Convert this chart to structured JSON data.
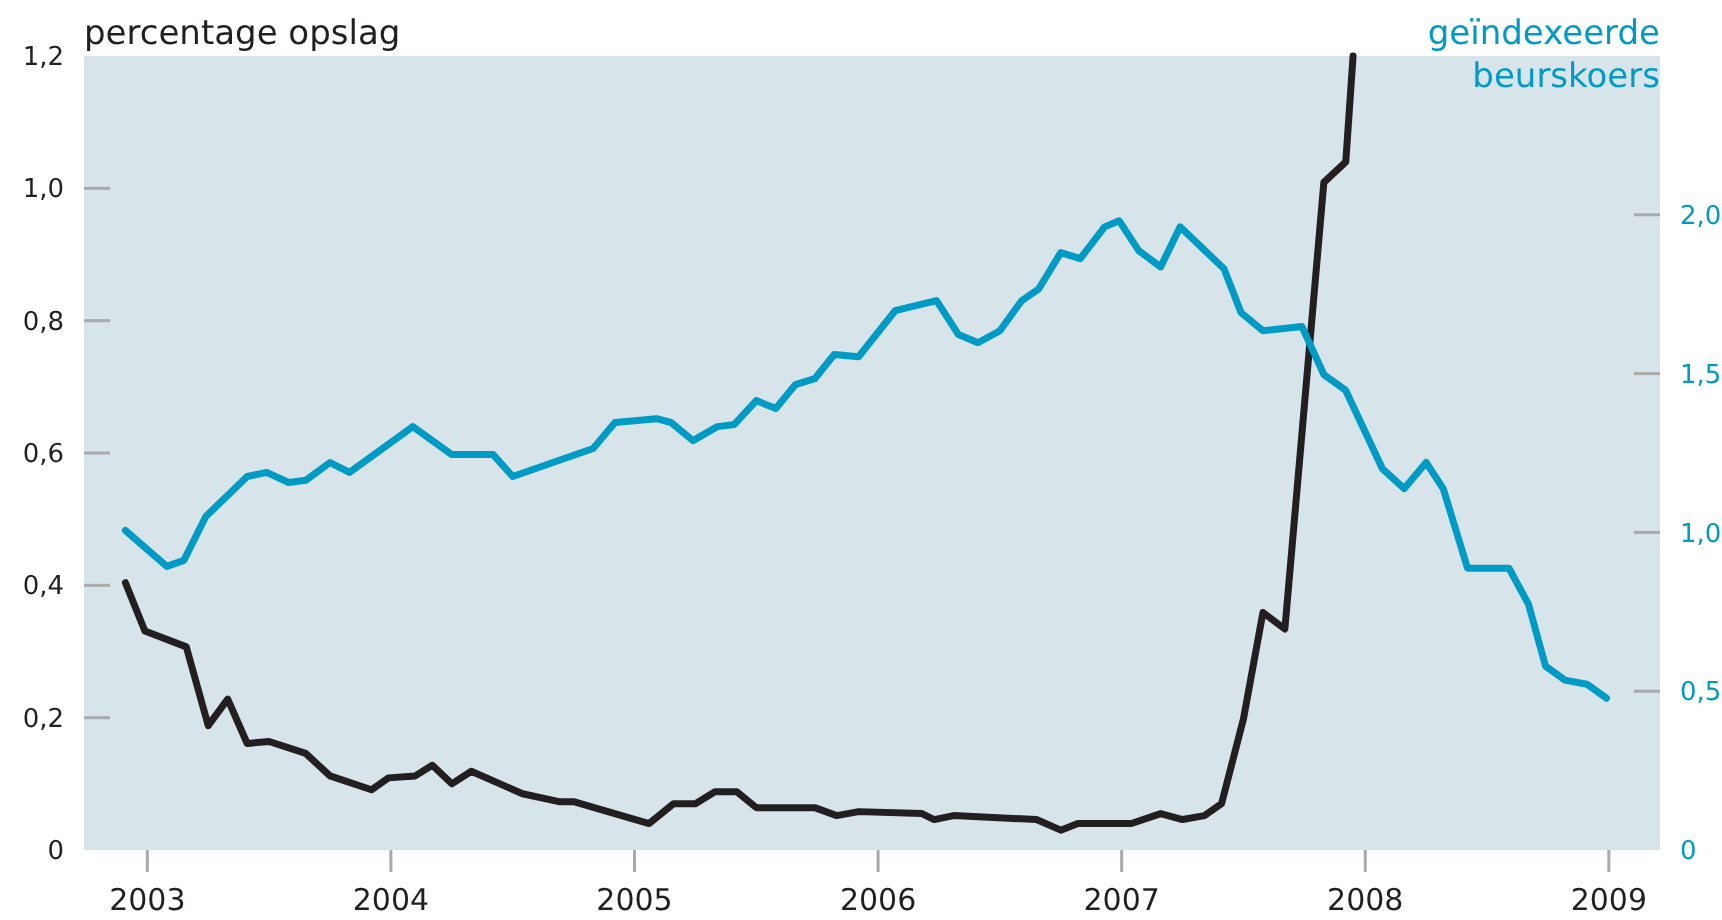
{
  "chart_data": {
    "type": "line",
    "ylabel": "percentage opslag",
    "y2label": "geïndexeerde beurskoers",
    "xlim": [
      2002.74,
      2009.21
    ],
    "xticks": [
      2003,
      2004,
      2005,
      2006,
      2007,
      2008,
      2009
    ],
    "ylim": [
      0,
      1.2
    ],
    "yticks": [
      {
        "value": 0,
        "label": "0"
      },
      {
        "value": 0.2,
        "label": "0,2"
      },
      {
        "value": 0.4,
        "label": "0,4"
      },
      {
        "value": 0.6,
        "label": "0,6"
      },
      {
        "value": 0.8,
        "label": "0,8"
      },
      {
        "value": 1.0,
        "label": "1,0"
      },
      {
        "value": 1.2,
        "label": "1,2"
      }
    ],
    "y2lim": [
      0,
      2.5
    ],
    "y2ticks": [
      {
        "value": 0,
        "label": "0"
      },
      {
        "value": 0.5,
        "label": "0,5"
      },
      {
        "value": 1.0,
        "label": "1,0"
      },
      {
        "value": 1.5,
        "label": "1,5"
      },
      {
        "value": 2.0,
        "label": "2,0"
      }
    ],
    "grid": false,
    "series": [
      {
        "color": "#231f20",
        "x": [
          2002.91,
          2002.99,
          2003.16,
          2003.25,
          2003.33,
          2003.41,
          2003.5,
          2003.65,
          2003.75,
          2003.92,
          2003.99,
          2004.1,
          2004.17,
          2004.25,
          2004.33,
          2004.54,
          2004.69,
          2004.75,
          2005.06,
          2005.16,
          2005.25,
          2005.33,
          2005.42,
          2005.5,
          2005.66,
          2005.74,
          2005.83,
          2005.92,
          2006.18,
          2006.23,
          2006.31,
          2006.65,
          2006.75,
          2006.82,
          2007.04,
          2007.16,
          2007.25,
          2007.34,
          2007.41,
          2007.5,
          2007.58,
          2007.67,
          2007.83,
          2007.92,
          2007.95
        ],
        "values": [
          0.404,
          0.331,
          0.307,
          0.188,
          0.228,
          0.161,
          0.164,
          0.146,
          0.112,
          0.091,
          0.109,
          0.112,
          0.128,
          0.1,
          0.119,
          0.085,
          0.073,
          0.073,
          0.04,
          0.07,
          0.07,
          0.088,
          0.088,
          0.064,
          0.064,
          0.064,
          0.052,
          0.058,
          0.055,
          0.046,
          0.052,
          0.046,
          0.03,
          0.04,
          0.04,
          0.055,
          0.046,
          0.052,
          0.07,
          0.198,
          0.359,
          0.334,
          1.009,
          1.04,
          1.2
        ]
      },
      {
        "color": "#009bc4",
        "axis": "y2",
        "x": [
          2002.91,
          2003.08,
          2003.15,
          2003.24,
          2003.41,
          2003.49,
          2003.58,
          2003.65,
          2003.75,
          2003.83,
          2004.09,
          2004.25,
          2004.42,
          2004.5,
          2004.83,
          2004.92,
          2005.09,
          2005.15,
          2005.24,
          2005.34,
          2005.41,
          2005.5,
          2005.58,
          2005.66,
          2005.74,
          2005.82,
          2005.92,
          2006.07,
          2006.24,
          2006.33,
          2006.41,
          2006.5,
          2006.59,
          2006.66,
          2006.75,
          2006.83,
          2006.93,
          2006.99,
          2007.07,
          2007.16,
          2007.24,
          2007.42,
          2007.49,
          2007.58,
          2007.74,
          2007.83,
          2007.92,
          2008.07,
          2008.16,
          2008.25,
          2008.32,
          2008.42,
          2008.59,
          2008.67,
          2008.74,
          2008.82,
          2008.91,
          2008.99
        ],
        "values": [
          1.006,
          0.893,
          0.912,
          1.05,
          1.176,
          1.189,
          1.157,
          1.164,
          1.22,
          1.189,
          1.333,
          1.245,
          1.245,
          1.176,
          1.264,
          1.346,
          1.358,
          1.346,
          1.289,
          1.333,
          1.34,
          1.415,
          1.39,
          1.465,
          1.484,
          1.56,
          1.553,
          1.698,
          1.73,
          1.623,
          1.597,
          1.635,
          1.73,
          1.767,
          1.881,
          1.862,
          1.962,
          1.981,
          1.887,
          1.836,
          1.962,
          1.83,
          1.692,
          1.635,
          1.648,
          1.497,
          1.447,
          1.201,
          1.138,
          1.22,
          1.138,
          0.887,
          0.887,
          0.774,
          0.579,
          0.535,
          0.522,
          0.478
        ]
      }
    ]
  }
}
